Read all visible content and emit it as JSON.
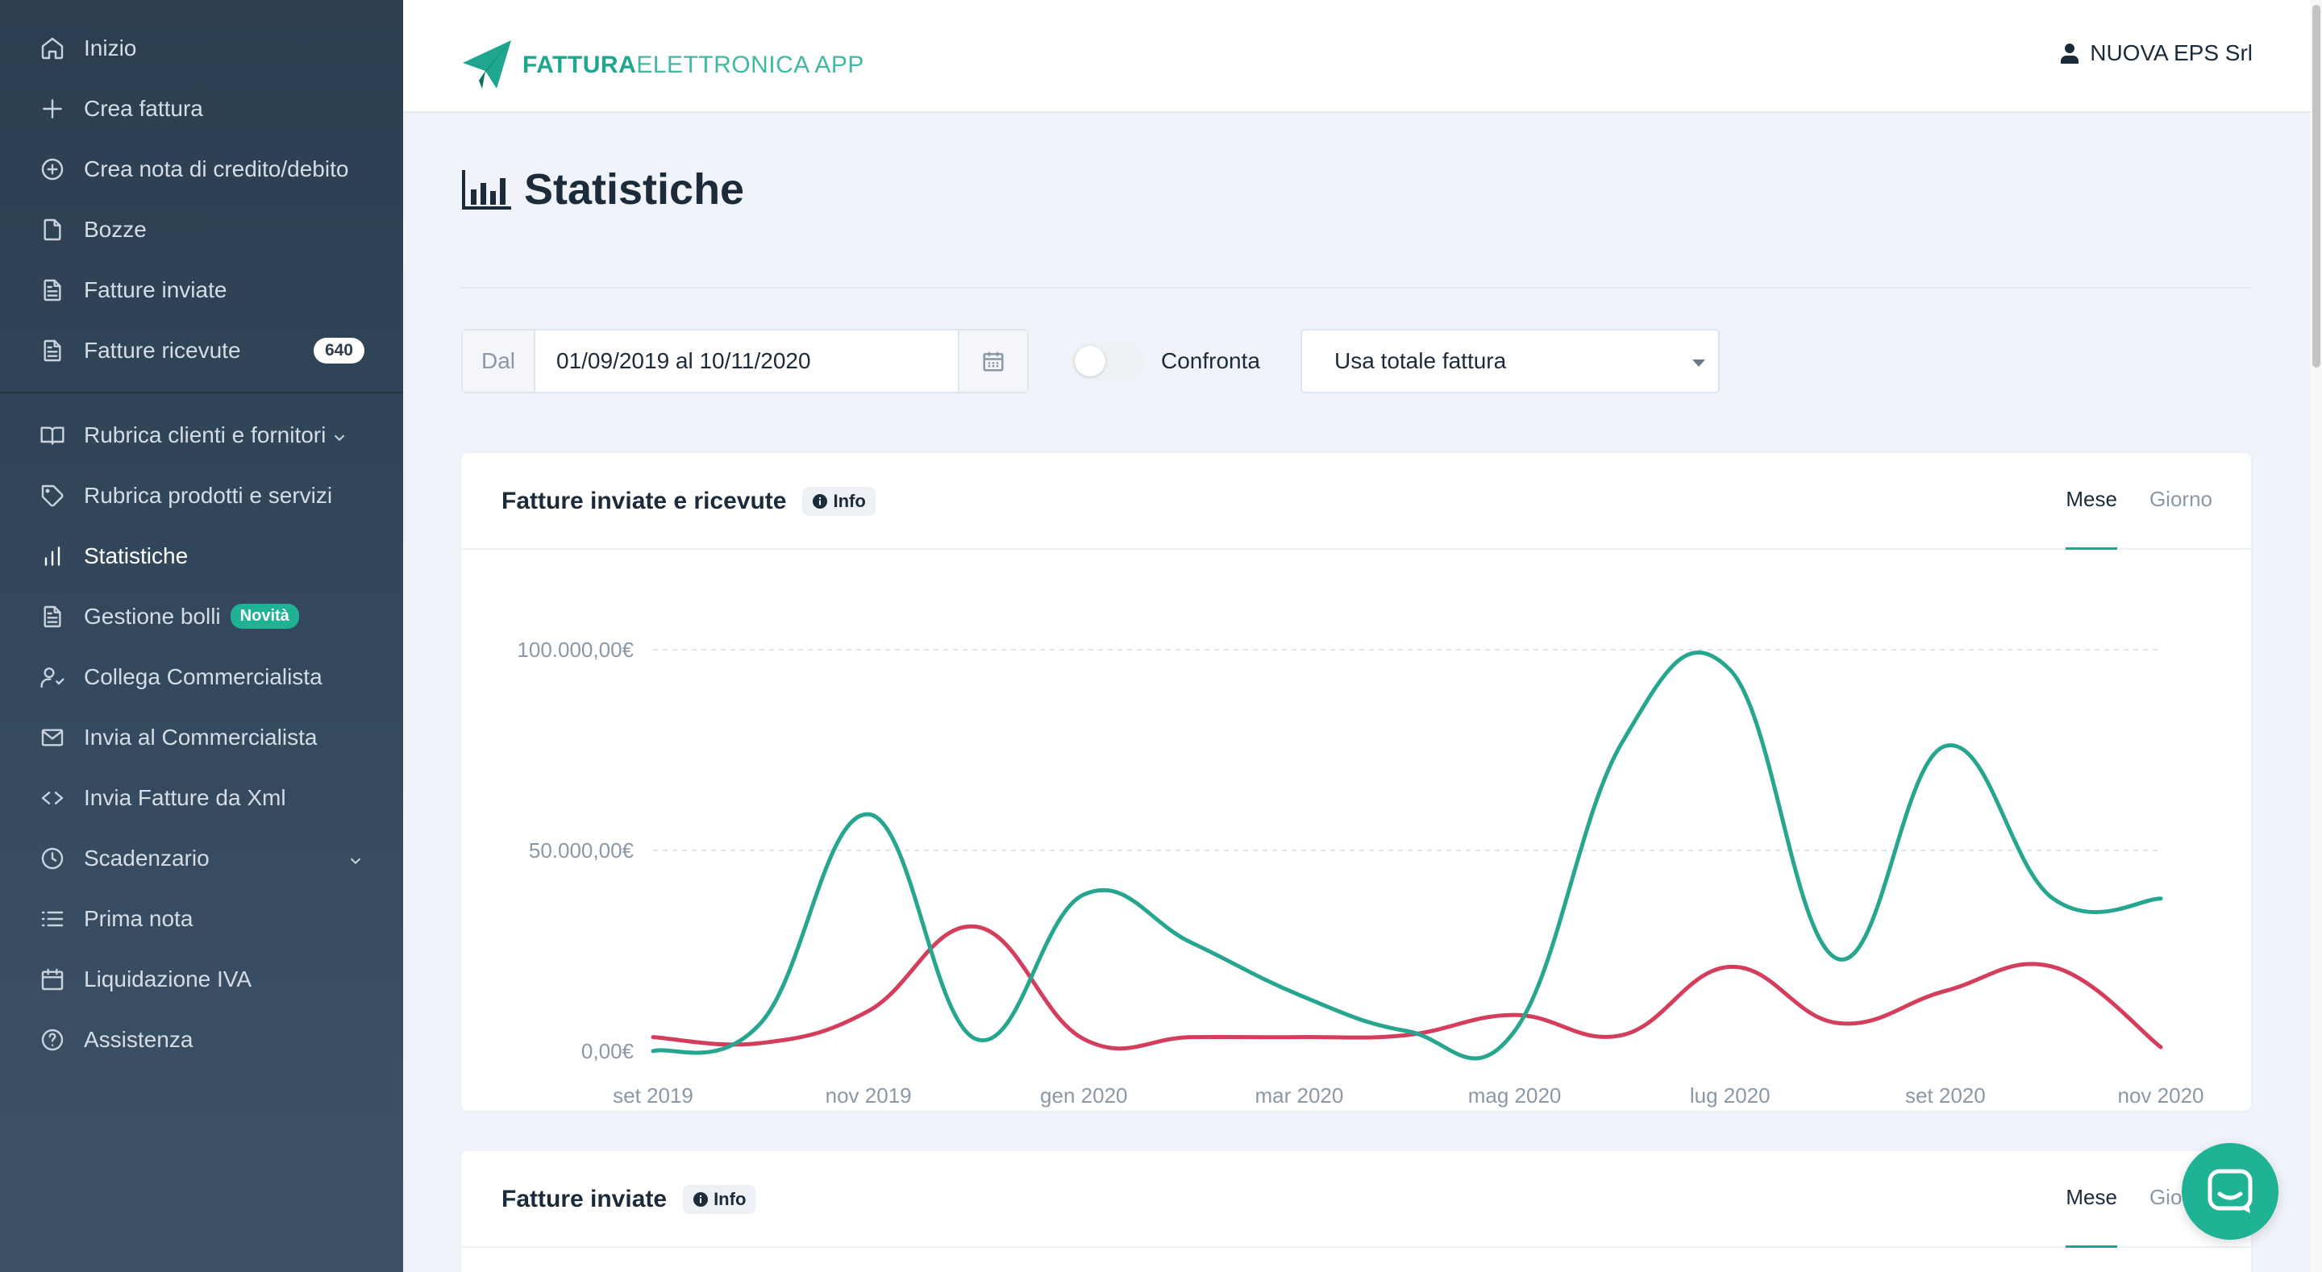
{
  "sidebar": {
    "items": [
      {
        "label": "Inizio",
        "icon": "home-icon"
      },
      {
        "label": "Crea fattura",
        "icon": "plus-icon"
      },
      {
        "label": "Crea nota di credito/debito",
        "icon": "plus-circle-icon"
      },
      {
        "label": "Bozze",
        "icon": "file-icon"
      },
      {
        "label": "Fatture inviate",
        "icon": "file-text-icon"
      },
      {
        "label": "Fatture ricevute",
        "icon": "file-text-icon",
        "badge": "640"
      },
      {
        "label": "Rubrica clienti e fornitori",
        "icon": "book-icon"
      },
      {
        "label": "Rubrica prodotti e servizi",
        "icon": "tag-icon"
      },
      {
        "label": "Statistiche",
        "icon": "bar-chart-icon",
        "active": true
      },
      {
        "label": "Gestione bolli",
        "icon": "file-text-icon",
        "badge": "Novità"
      },
      {
        "label": "Collega Commercialista",
        "icon": "user-check-icon"
      },
      {
        "label": "Invia al Commercialista",
        "icon": "mail-icon"
      },
      {
        "label": "Invia Fatture da Xml",
        "icon": "code-icon"
      },
      {
        "label": "Scadenzario",
        "icon": "clock-icon"
      },
      {
        "label": "Prima nota",
        "icon": "list-icon"
      },
      {
        "label": "Liquidazione IVA",
        "icon": "calendar-icon"
      },
      {
        "label": "Assistenza",
        "icon": "help-circle-icon"
      }
    ]
  },
  "header": {
    "logo_strong": "FATTURA",
    "logo_light": "ELETTRONICA APP",
    "user_name": "NUOVA EPS Srl"
  },
  "page": {
    "title": "Statistiche"
  },
  "filters": {
    "date_prefix": "Dal",
    "date_value": "01/09/2019 al 10/11/2020",
    "toggle_label": "Confronta",
    "toggle_on": false,
    "select_value": "Usa totale fattura"
  },
  "cards": [
    {
      "title": "Fatture inviate e ricevute",
      "info_label": "Info",
      "tabs": [
        "Mese",
        "Giorno"
      ],
      "active_tab": "Mese"
    },
    {
      "title": "Fatture inviate",
      "info_label": "Info",
      "tabs": [
        "Mese",
        "Giorno"
      ],
      "active_tab": "Mese"
    }
  ],
  "chart_data": {
    "type": "line",
    "title": "",
    "xlabel": "",
    "ylabel": "",
    "ylim": [
      0,
      100000
    ],
    "y_ticks": [
      "0,00€",
      "50.000,00€",
      "100.000,00€"
    ],
    "y_tick_values": [
      0,
      50000,
      100000
    ],
    "x_tick_labels": [
      "set 2019",
      "nov 2019",
      "gen 2020",
      "mar 2020",
      "mag 2020",
      "lug 2020",
      "set 2020",
      "nov 2020"
    ],
    "x": [
      "set 2019",
      "ott 2019",
      "nov 2019",
      "dic 2019",
      "gen 2020",
      "feb 2020",
      "mar 2020",
      "apr 2020",
      "mag 2020",
      "giu 2020",
      "lug 2020",
      "ago 2020",
      "set 2020",
      "ott 2020",
      "nov 2020"
    ],
    "grid": true,
    "legend": "none",
    "series": [
      {
        "color": "#26a58f",
        "values": [
          0,
          7000,
          59000,
          3000,
          39000,
          27000,
          14000,
          5000,
          5000,
          77000,
          95000,
          23000,
          76000,
          38000,
          38000
        ]
      },
      {
        "color": "#d43d5c",
        "values": [
          3500,
          2000,
          10000,
          31000,
          3000,
          3500,
          3500,
          4000,
          9000,
          4000,
          21000,
          7000,
          15000,
          21000,
          1000
        ]
      }
    ]
  },
  "colors": {
    "sidebar_bg": "#2c3e50",
    "accent": "#1fa68e",
    "series_sent": "#26a58f",
    "series_received": "#d43d5c",
    "badge_new": "#1fb295"
  }
}
